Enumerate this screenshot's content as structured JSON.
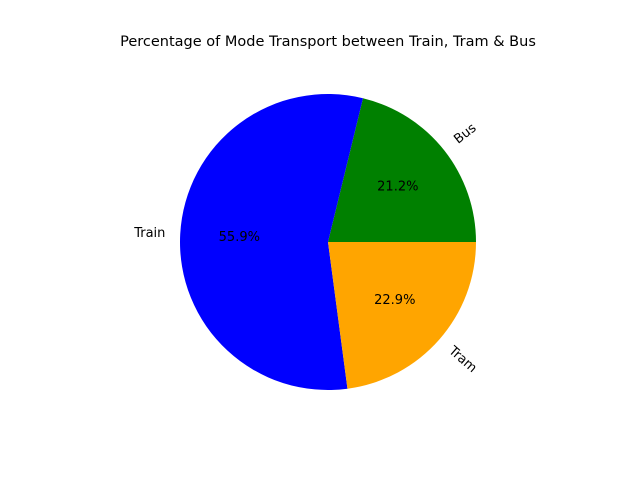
{
  "chart_data": {
    "type": "pie",
    "title": "Percentage of Mode Transport between Train, Tram & Bus",
    "slices": [
      {
        "label": "Bus",
        "value": 21.2,
        "pct_label": "21.2%",
        "color": "#008000"
      },
      {
        "label": "Train",
        "value": 55.9,
        "pct_label": "55.9%",
        "color": "#0000ff"
      },
      {
        "label": "Tram",
        "value": 22.9,
        "pct_label": "22.9%",
        "color": "#ffa500"
      }
    ],
    "start_angle": 0,
    "direction": "counterclockwise",
    "rotate_labels": true
  }
}
